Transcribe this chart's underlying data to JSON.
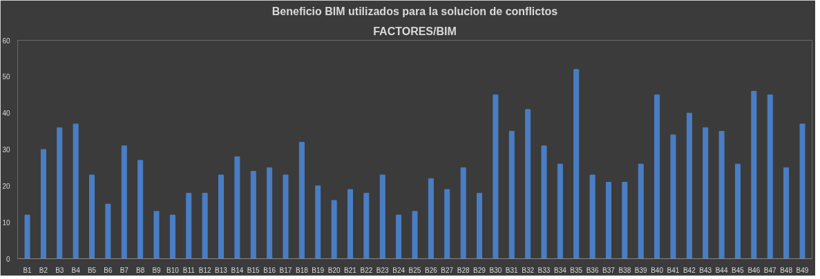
{
  "chart_data": {
    "type": "bar",
    "title": "Beneficio BIM utilizados para la solucion de conflictos",
    "subtitle": "FACTORES/BIM",
    "categories": [
      "B1",
      "B2",
      "B3",
      "B4",
      "B5",
      "B6",
      "B7",
      "B8",
      "B9",
      "B10",
      "B11",
      "B12",
      "B13",
      "B14",
      "B15",
      "B16",
      "B17",
      "B18",
      "B19",
      "B20",
      "B21",
      "B22",
      "B23",
      "B24",
      "B25",
      "B26",
      "B27",
      "B28",
      "B29",
      "B30",
      "B31",
      "B32",
      "B33",
      "B34",
      "B35",
      "B36",
      "B37",
      "B38",
      "B39",
      "B40",
      "B41",
      "B42",
      "B43",
      "B44",
      "B45",
      "B46",
      "B47",
      "B48",
      "B49"
    ],
    "values": [
      12,
      30,
      36,
      37,
      23,
      15,
      31,
      27,
      13,
      12,
      18,
      18,
      23,
      28,
      24,
      25,
      23,
      32,
      20,
      16,
      19,
      18,
      23,
      12,
      13,
      22,
      19,
      25,
      18,
      45,
      35,
      41,
      31,
      26,
      52,
      23,
      21,
      21,
      26,
      45,
      34,
      40,
      36,
      35,
      26,
      46,
      45,
      25,
      37
    ],
    "color": "#4a7ec4",
    "ylim": [
      0,
      60
    ],
    "yticks": [
      0,
      10,
      20,
      30,
      40,
      50,
      60
    ],
    "grid": false
  }
}
